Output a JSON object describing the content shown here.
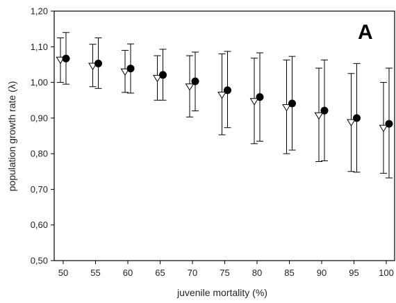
{
  "chart_data": {
    "type": "scatter",
    "panel_label": "A",
    "xlabel": "juvenile mortality (%)",
    "ylabel": "population growth rate (λ)",
    "categories": [
      "50",
      "55",
      "60",
      "65",
      "70",
      "75",
      "80",
      "85",
      "90",
      "95",
      "100"
    ],
    "y_ticks": [
      "0,50",
      "0,60",
      "0,70",
      "0,80",
      "0,90",
      "1,00",
      "1,10",
      "1,20"
    ],
    "ylim": [
      0.5,
      1.2
    ],
    "grid": false,
    "legend": "none",
    "series": [
      {
        "marker": "open-triangle-down",
        "values": [
          1.063,
          1.046,
          1.03,
          1.012,
          0.988,
          0.965,
          0.947,
          0.93,
          0.907,
          0.888,
          0.872
        ],
        "err_low": [
          1.0,
          0.988,
          0.972,
          0.95,
          0.903,
          0.853,
          0.828,
          0.8,
          0.778,
          0.75,
          0.745
        ],
        "err_high": [
          1.125,
          1.107,
          1.09,
          1.075,
          1.075,
          1.08,
          1.068,
          1.063,
          1.04,
          1.025,
          1.0
        ]
      },
      {
        "marker": "filled-circle",
        "values": [
          1.067,
          1.053,
          1.039,
          1.021,
          1.003,
          0.978,
          0.959,
          0.941,
          0.921,
          0.9,
          0.884
        ],
        "err_low": [
          0.995,
          0.983,
          0.97,
          0.95,
          0.92,
          0.873,
          0.835,
          0.81,
          0.78,
          0.748,
          0.732
        ],
        "err_high": [
          1.14,
          1.125,
          1.108,
          1.093,
          1.085,
          1.087,
          1.083,
          1.073,
          1.063,
          1.053,
          1.04
        ]
      }
    ],
    "colors": {
      "axis": "#000000",
      "filled": "#000000",
      "open_fill": "#ffffff"
    }
  }
}
